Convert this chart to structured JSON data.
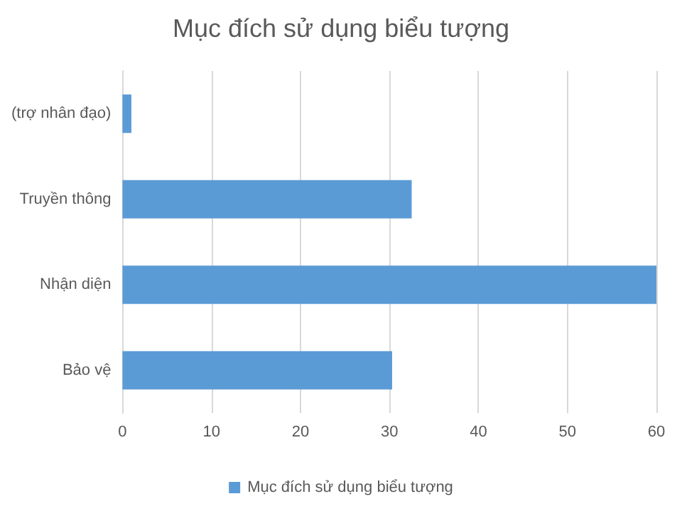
{
  "chart_data": {
    "type": "bar",
    "orientation": "horizontal",
    "title": "Mục đích sử dụng biểu tượng",
    "categories": [
      "(trợ nhân đạo)",
      "Truyền thông",
      "Nhận diện",
      "Bảo vệ"
    ],
    "series": [
      {
        "name": "Mục đích sử dụng biểu tượng",
        "color": "#5b9bd5",
        "values": [
          1.0,
          32.5,
          60,
          30.3
        ]
      }
    ],
    "xlim": [
      0,
      60
    ],
    "xticks": [
      0,
      10,
      20,
      30,
      40,
      50,
      60
    ],
    "grid": "x",
    "legend": "bottom"
  }
}
